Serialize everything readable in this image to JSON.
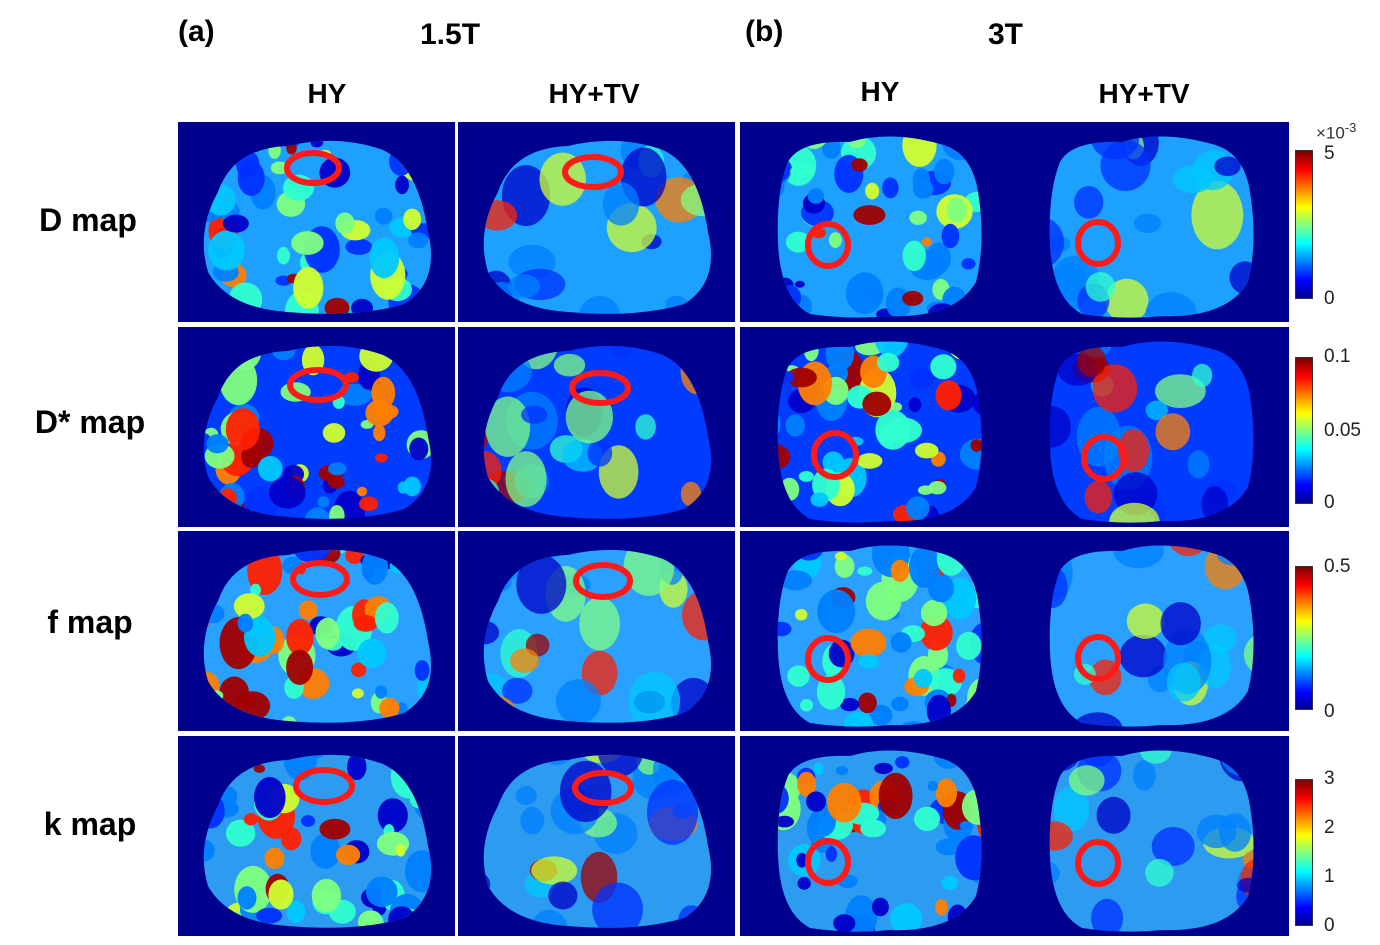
{
  "headers": {
    "a": "(a)",
    "a_field": "1.5T",
    "b": "(b)",
    "b_field": "3T"
  },
  "columns": [
    "HY",
    "HY+TV",
    "HY",
    "HY+TV"
  ],
  "rows": [
    "D map",
    "D* map",
    "f map",
    "k map"
  ],
  "colorbars": [
    {
      "exponent": "×10",
      "exponent_power": "-3",
      "ticks": [
        "5",
        "0"
      ]
    },
    {
      "ticks": [
        "0.1",
        "0.05",
        "0"
      ]
    },
    {
      "ticks": [
        "0.5",
        "0"
      ]
    },
    {
      "ticks": [
        "3",
        "2",
        "1",
        "0"
      ]
    }
  ],
  "colors": {
    "background": "#00008f",
    "roi_circle": "#ff1a1a"
  }
}
